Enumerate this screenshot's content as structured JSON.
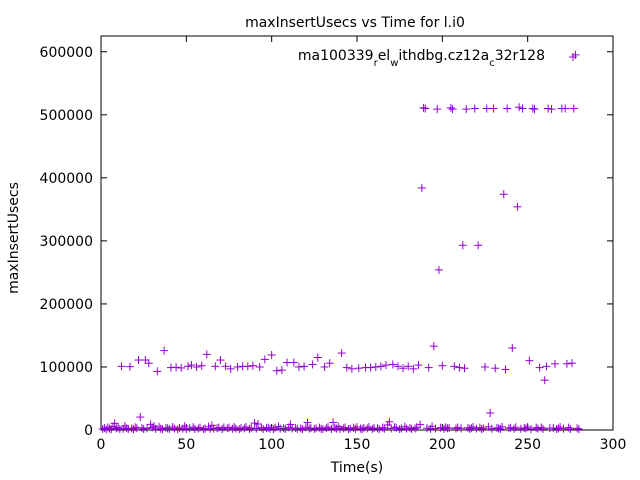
{
  "chart_data": {
    "type": "scatter",
    "title": "maxInsertUsecs vs Time for l.i0",
    "xlabel": "Time(s)",
    "ylabel": "maxInsertUsecs",
    "xlim": [
      0,
      300
    ],
    "ylim": [
      0,
      625000
    ],
    "xticks": [
      0,
      50,
      100,
      150,
      200,
      250,
      300
    ],
    "yticks": [
      0,
      100000,
      200000,
      300000,
      400000,
      500000,
      600000
    ],
    "xtick_labels": [
      "0",
      "50",
      "100",
      "150",
      "200",
      "250",
      "300"
    ],
    "ytick_labels": [
      "0",
      "100000",
      "200000",
      "300000",
      "400000",
      "500000",
      "600000"
    ],
    "grid": false,
    "legend_position": "top-right",
    "series": [
      {
        "name": "ma100339",
        "legend_parts": [
          "ma100339",
          "r",
          "el",
          "w",
          "ithdbg.cz12a",
          "c",
          "32r128"
        ],
        "color": "#9400d3",
        "marker": "plus",
        "points": [
          [
            1,
            1800
          ],
          [
            2,
            3200
          ],
          [
            3,
            900
          ],
          [
            4,
            4100
          ],
          [
            5,
            2200
          ],
          [
            6,
            1300
          ],
          [
            7,
            5600
          ],
          [
            8,
            10500
          ],
          [
            9,
            2600
          ],
          [
            10,
            3800
          ],
          [
            11,
            1500
          ],
          [
            12,
            101000
          ],
          [
            13,
            1900
          ],
          [
            14,
            6400
          ],
          [
            15,
            3000
          ],
          [
            16,
            1700
          ],
          [
            17,
            100500
          ],
          [
            18,
            2400
          ],
          [
            19,
            1200
          ],
          [
            20,
            4300
          ],
          [
            21,
            2900
          ],
          [
            22,
            111000
          ],
          [
            23,
            20500
          ],
          [
            24,
            3300
          ],
          [
            25,
            1600
          ],
          [
            26,
            111000
          ],
          [
            27,
            2500
          ],
          [
            28,
            106000
          ],
          [
            29,
            8900
          ],
          [
            30,
            3900
          ],
          [
            31,
            6200
          ],
          [
            32,
            1800
          ],
          [
            33,
            93000
          ],
          [
            34,
            4900
          ],
          [
            35,
            2100
          ],
          [
            36,
            1400
          ],
          [
            37,
            126000
          ],
          [
            38,
            3600
          ],
          [
            39,
            2700
          ],
          [
            40,
            1900
          ],
          [
            41,
            99000
          ],
          [
            42,
            4800
          ],
          [
            43,
            2300
          ],
          [
            44,
            99500
          ],
          [
            45,
            1300
          ],
          [
            46,
            3400
          ],
          [
            47,
            98500
          ],
          [
            48,
            2200
          ],
          [
            49,
            6100
          ],
          [
            50,
            1500
          ],
          [
            51,
            101000
          ],
          [
            52,
            2800
          ],
          [
            53,
            103000
          ],
          [
            54,
            4500
          ],
          [
            55,
            1700
          ],
          [
            56,
            100000
          ],
          [
            57,
            2600
          ],
          [
            58,
            3900
          ],
          [
            59,
            102000
          ],
          [
            60,
            1400
          ],
          [
            61,
            2400
          ],
          [
            62,
            120000
          ],
          [
            63,
            5200
          ],
          [
            64,
            1800
          ],
          [
            65,
            7400
          ],
          [
            66,
            2200
          ],
          [
            67,
            101000
          ],
          [
            68,
            2900
          ],
          [
            69,
            3800
          ],
          [
            70,
            111000
          ],
          [
            71,
            1600
          ],
          [
            72,
            4200
          ],
          [
            73,
            101000
          ],
          [
            74,
            2800
          ],
          [
            75,
            3500
          ],
          [
            76,
            97000
          ],
          [
            77,
            1900
          ],
          [
            78,
            4600
          ],
          [
            79,
            2300
          ],
          [
            80,
            100000
          ],
          [
            81,
            1500
          ],
          [
            82,
            3100
          ],
          [
            83,
            101000
          ],
          [
            84,
            2600
          ],
          [
            85,
            4800
          ],
          [
            86,
            101000
          ],
          [
            87,
            1700
          ],
          [
            88,
            3300
          ],
          [
            89,
            102000
          ],
          [
            90,
            11000
          ],
          [
            91,
            2400
          ],
          [
            92,
            9500
          ],
          [
            93,
            100000
          ],
          [
            94,
            4100
          ],
          [
            95,
            1600
          ],
          [
            96,
            112000
          ],
          [
            97,
            2900
          ],
          [
            98,
            3700
          ],
          [
            99,
            2100
          ],
          [
            100,
            119000
          ],
          [
            101,
            1400
          ],
          [
            102,
            3600
          ],
          [
            103,
            94000
          ],
          [
            104,
            5500
          ],
          [
            105,
            2200
          ],
          [
            106,
            95000
          ],
          [
            107,
            2800
          ],
          [
            108,
            1900
          ],
          [
            109,
            107000
          ],
          [
            110,
            4300
          ],
          [
            111,
            8800
          ],
          [
            112,
            2500
          ],
          [
            113,
            107000
          ],
          [
            114,
            3200
          ],
          [
            115,
            1800
          ],
          [
            116,
            100000
          ],
          [
            117,
            2600
          ],
          [
            118,
            1300
          ],
          [
            119,
            101000
          ],
          [
            120,
            4400
          ],
          [
            121,
            12000
          ],
          [
            122,
            2300
          ],
          [
            123,
            3000
          ],
          [
            124,
            104000
          ],
          [
            125,
            1700
          ],
          [
            126,
            2800
          ],
          [
            127,
            115000
          ],
          [
            128,
            3700
          ],
          [
            129,
            2000
          ],
          [
            130,
            1400
          ],
          [
            131,
            100000
          ],
          [
            132,
            2900
          ],
          [
            133,
            4600
          ],
          [
            134,
            106000
          ],
          [
            135,
            1600
          ],
          [
            136,
            12000
          ],
          [
            137,
            3300
          ],
          [
            138,
            2100
          ],
          [
            139,
            5500
          ],
          [
            140,
            1800
          ],
          [
            141,
            122000
          ],
          [
            142,
            2700
          ],
          [
            143,
            4000
          ],
          [
            144,
            99000
          ],
          [
            145,
            1500
          ],
          [
            146,
            2300
          ],
          [
            147,
            97000
          ],
          [
            148,
            3600
          ],
          [
            149,
            1900
          ],
          [
            150,
            4800
          ],
          [
            151,
            98000
          ],
          [
            152,
            2200
          ],
          [
            153,
            1300
          ],
          [
            154,
            3400
          ],
          [
            155,
            99000
          ],
          [
            156,
            2600
          ],
          [
            157,
            4700
          ],
          [
            158,
            99000
          ],
          [
            159,
            1700
          ],
          [
            160,
            3100
          ],
          [
            161,
            100000
          ],
          [
            162,
            2800
          ],
          [
            163,
            1400
          ],
          [
            164,
            101000
          ],
          [
            165,
            3900
          ],
          [
            166,
            2000
          ],
          [
            167,
            103000
          ],
          [
            168,
            8000
          ],
          [
            169,
            13000
          ],
          [
            170,
            2500
          ],
          [
            171,
            104000
          ],
          [
            172,
            4500
          ],
          [
            173,
            3600
          ],
          [
            174,
            101000
          ],
          [
            175,
            1600
          ],
          [
            176,
            2700
          ],
          [
            177,
            98000
          ],
          [
            178,
            5200
          ],
          [
            179,
            2100
          ],
          [
            180,
            101000
          ],
          [
            181,
            3300
          ],
          [
            182,
            1800
          ],
          [
            183,
            97000
          ],
          [
            184,
            2600
          ],
          [
            185,
            4300
          ],
          [
            186,
            103000
          ],
          [
            187,
            8500
          ],
          [
            188,
            384000
          ],
          [
            189,
            511000
          ],
          [
            190,
            510000
          ],
          [
            191,
            3000
          ],
          [
            192,
            99000
          ],
          [
            193,
            1700
          ],
          [
            194,
            5800
          ],
          [
            195,
            133000
          ],
          [
            196,
            2400
          ],
          [
            197,
            509000
          ],
          [
            198,
            254000
          ],
          [
            199,
            3700
          ],
          [
            200,
            102000
          ],
          [
            201,
            1900
          ],
          [
            202,
            4400
          ],
          [
            203,
            2800
          ],
          [
            204,
            3200
          ],
          [
            205,
            511000
          ],
          [
            206,
            509000
          ],
          [
            207,
            101000
          ],
          [
            208,
            2200
          ],
          [
            209,
            4100
          ],
          [
            210,
            99000
          ],
          [
            211,
            2600
          ],
          [
            212,
            293000
          ],
          [
            213,
            98000
          ],
          [
            214,
            509000
          ],
          [
            215,
            3500
          ],
          [
            216,
            1800
          ],
          [
            217,
            2900
          ],
          [
            218,
            4700
          ],
          [
            219,
            510000
          ],
          [
            220,
            2300
          ],
          [
            221,
            293000
          ],
          [
            222,
            3800
          ],
          [
            223,
            1500
          ],
          [
            224,
            2700
          ],
          [
            225,
            100000
          ],
          [
            226,
            510000
          ],
          [
            227,
            5100
          ],
          [
            228,
            27000
          ],
          [
            229,
            2000
          ],
          [
            230,
            510000
          ],
          [
            231,
            98000
          ],
          [
            232,
            3400
          ],
          [
            233,
            2500
          ],
          [
            234,
            1700
          ],
          [
            235,
            5000
          ],
          [
            236,
            374000
          ],
          [
            237,
            96000
          ],
          [
            238,
            510000
          ],
          [
            239,
            2800
          ],
          [
            240,
            3600
          ],
          [
            241,
            130000
          ],
          [
            242,
            2100
          ],
          [
            243,
            4300
          ],
          [
            244,
            354000
          ],
          [
            245,
            512000
          ],
          [
            246,
            1900
          ],
          [
            247,
            510000
          ],
          [
            248,
            3200
          ],
          [
            249,
            2600
          ],
          [
            250,
            4800
          ],
          [
            251,
            110000
          ],
          [
            252,
            1500
          ],
          [
            253,
            510000
          ],
          [
            254,
            509000
          ],
          [
            255,
            3700
          ],
          [
            256,
            2300
          ],
          [
            257,
            99000
          ],
          [
            258,
            4000
          ],
          [
            259,
            1800
          ],
          [
            260,
            79000
          ],
          [
            261,
            101000
          ],
          [
            262,
            510000
          ],
          [
            263,
            2900
          ],
          [
            264,
            509000
          ],
          [
            265,
            3300
          ],
          [
            266,
            105000
          ],
          [
            267,
            1600
          ],
          [
            268,
            2500
          ],
          [
            269,
            4600
          ],
          [
            270,
            510000
          ],
          [
            271,
            2100
          ],
          [
            272,
            510000
          ],
          [
            273,
            105000
          ],
          [
            274,
            3800
          ],
          [
            275,
            1700
          ],
          [
            276,
            106000
          ],
          [
            277,
            510000
          ],
          [
            278,
            595000
          ],
          [
            279,
            2700
          ],
          [
            280,
            1300
          ]
        ]
      }
    ]
  }
}
